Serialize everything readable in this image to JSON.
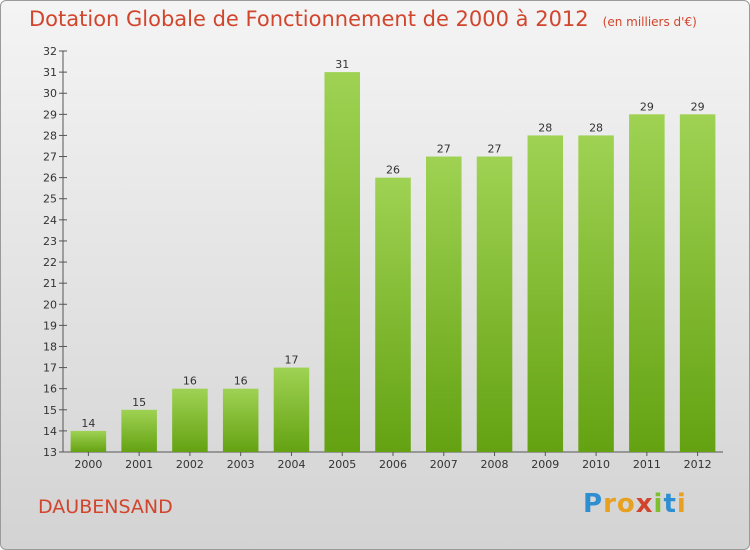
{
  "chart_data": {
    "type": "bar",
    "title": "Dotation Globale de Fonctionnement de 2000 à 2012",
    "subtitle": "(en milliers d'€)",
    "categories": [
      "2000",
      "2001",
      "2002",
      "2003",
      "2004",
      "2005",
      "2006",
      "2007",
      "2008",
      "2009",
      "2010",
      "2011",
      "2012"
    ],
    "values": [
      14,
      15,
      16,
      16,
      17,
      31,
      26,
      27,
      27,
      28,
      28,
      29,
      29
    ],
    "ylim": [
      13,
      32
    ],
    "yticks": [
      13,
      14,
      15,
      16,
      17,
      18,
      19,
      20,
      21,
      22,
      23,
      24,
      25,
      26,
      27,
      28,
      29,
      30,
      31,
      32
    ],
    "grid": false,
    "bar_color": "#7fbe2e",
    "xlabel": "",
    "ylabel": ""
  },
  "footer": {
    "location": "DAUBENSAND",
    "brand": "Proxiti"
  },
  "colors": {
    "title": "#d2452d",
    "brand_letters": [
      "#2d8fd2",
      "#e8a020",
      "#e8a020",
      "#d2452d",
      "#7fbe2e",
      "#2d8fd2",
      "#e8a020"
    ]
  }
}
